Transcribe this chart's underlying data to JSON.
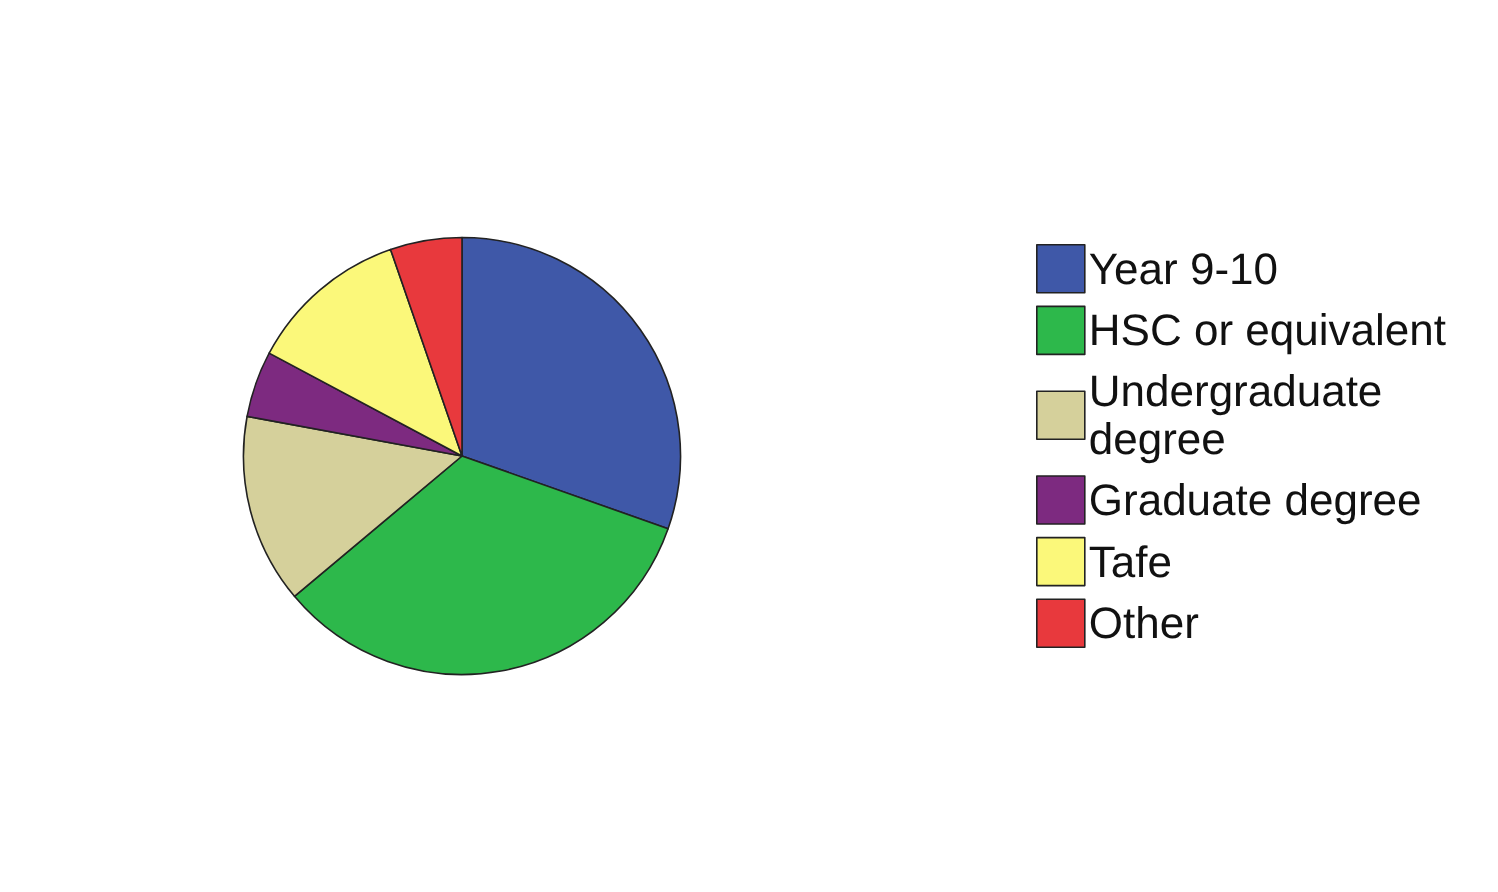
{
  "chart_data": {
    "type": "pie",
    "categories": [
      "Year 9-10",
      "HSC or equivalent",
      "Undergraduate degree",
      "Graduate degree",
      "Tafe",
      "Other"
    ],
    "values": [
      30.4,
      33.5,
      14.0,
      4.9,
      11.9,
      5.3
    ],
    "colors": [
      "#3f58a8",
      "#2db84b",
      "#d5d09b",
      "#7d2a80",
      "#fbf87a",
      "#e8393d"
    ],
    "legend": "right"
  }
}
